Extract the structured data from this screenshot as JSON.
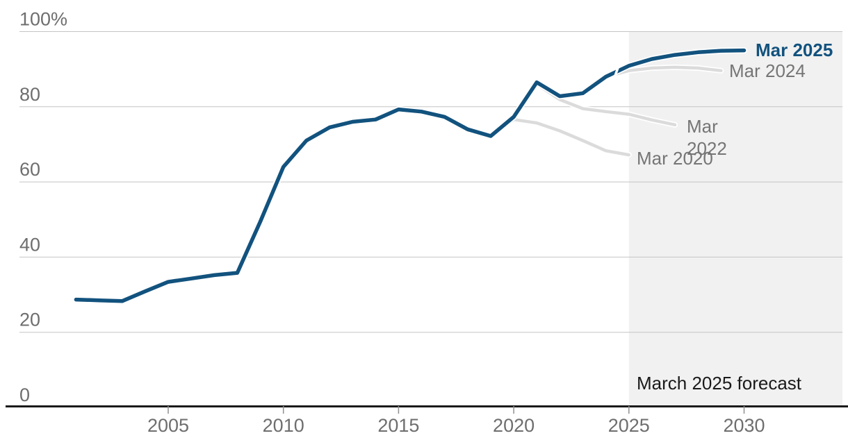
{
  "chart_data": {
    "type": "line",
    "title": "",
    "ylabel": "",
    "xlabel": "",
    "unit": "%",
    "ylim": [
      0,
      100
    ],
    "grid": true,
    "yticks": [
      0,
      20,
      40,
      60,
      80,
      100
    ],
    "ytick_labels": [
      "0",
      "20",
      "40",
      "60",
      "80",
      "100%"
    ],
    "xticks": [
      2005,
      2010,
      2015,
      2020,
      2025,
      2030
    ],
    "xtick_labels": [
      "2005",
      "2010",
      "2015",
      "2020",
      "2025",
      "2030"
    ],
    "forecast_region": {
      "start": 2025,
      "end": 2034.3,
      "label": "March 2025 forecast"
    },
    "series": [
      {
        "name": "Mar 2025",
        "color": "#12527e",
        "width": 5.5,
        "x": [
          2001,
          2002,
          2003,
          2004,
          2005,
          2006,
          2007,
          2008,
          2009,
          2010,
          2011,
          2012,
          2013,
          2014,
          2015,
          2016,
          2017,
          2018,
          2019,
          2020,
          2021,
          2022,
          2023,
          2024,
          2025,
          2026,
          2027,
          2028,
          2029,
          2030
        ],
        "values": [
          28.7,
          28.5,
          28.3,
          30.9,
          33.4,
          34.3,
          35.2,
          35.8,
          49.5,
          64.0,
          71.0,
          74.5,
          76.0,
          76.6,
          79.3,
          78.7,
          77.3,
          74.0,
          72.2,
          77.3,
          86.5,
          82.8,
          83.6,
          88.0,
          90.9,
          92.7,
          93.8,
          94.5,
          94.9,
          95.0
        ]
      },
      {
        "name": "Mar 2024",
        "color": "#dbdbdb",
        "width": 4.5,
        "x": [
          2024,
          2025,
          2026,
          2027,
          2028,
          2029
        ],
        "values": [
          88.0,
          89.6,
          90.3,
          90.5,
          90.3,
          89.6
        ]
      },
      {
        "name": "Mar 2022",
        "color": "#dbdbdb",
        "width": 4.5,
        "x": [
          2021,
          2022,
          2023,
          2024,
          2025,
          2026,
          2027
        ],
        "values": [
          86.0,
          81.9,
          79.5,
          78.7,
          78.0,
          76.5,
          75.2
        ]
      },
      {
        "name": "Mar 2020",
        "color": "#dbdbdb",
        "width": 4.5,
        "x": [
          2019,
          2020,
          2021,
          2022,
          2023,
          2024,
          2025
        ],
        "values": [
          72.2,
          76.6,
          75.7,
          73.6,
          71.0,
          68.3,
          67.2
        ]
      }
    ]
  },
  "colors": {
    "highlight_line": "#12527e",
    "gray_line": "#dbdbdb",
    "forecast_shading": "#f1f1f1",
    "gridline": "#c4c4c4",
    "axis_line": "#1a1a1a",
    "tick_mark": "#8f8f8f",
    "axis_label": "#6e6e6e",
    "gray_label": "#757575",
    "forecast_label": "#1a1a1a"
  }
}
